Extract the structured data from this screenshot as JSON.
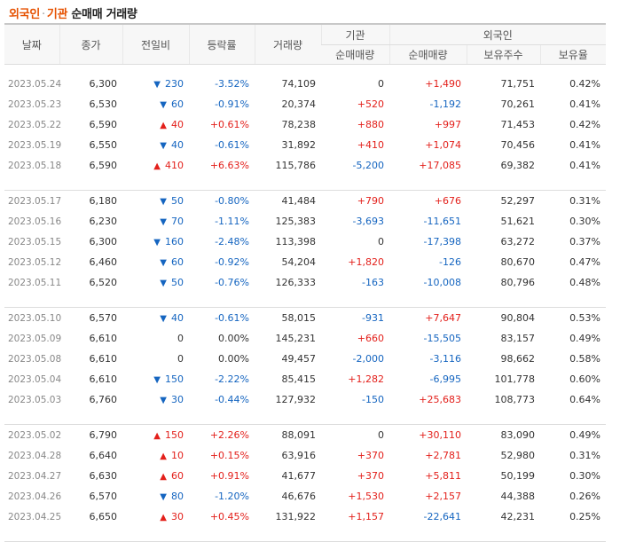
{
  "title": {
    "part1": "외국인",
    "sep": "·",
    "part2": "기관",
    "part3": "순매매 거래량"
  },
  "headers": {
    "date": "날짜",
    "close": "종가",
    "change": "전일비",
    "rate": "등락률",
    "volume": "거래량",
    "institution": "기관",
    "foreign": "외국인",
    "inst_net": "순매매량",
    "foreign_net": "순매매량",
    "foreign_hold": "보유주수",
    "foreign_ratio": "보유율"
  },
  "colors": {
    "up": "#e3201b",
    "down": "#1565c0"
  },
  "groups": [
    [
      {
        "date": "2023.05.24",
        "close": "6,300",
        "dir": "down",
        "change": "230",
        "rate": "-3.52%",
        "volume": "74,109",
        "inst": "0",
        "foreign": "+1,490",
        "hold": "71,751",
        "ratio": "0.42%"
      },
      {
        "date": "2023.05.23",
        "close": "6,530",
        "dir": "down",
        "change": "60",
        "rate": "-0.91%",
        "volume": "20,374",
        "inst": "+520",
        "foreign": "-1,192",
        "hold": "70,261",
        "ratio": "0.41%"
      },
      {
        "date": "2023.05.22",
        "close": "6,590",
        "dir": "up",
        "change": "40",
        "rate": "+0.61%",
        "volume": "78,238",
        "inst": "+880",
        "foreign": "+997",
        "hold": "71,453",
        "ratio": "0.42%"
      },
      {
        "date": "2023.05.19",
        "close": "6,550",
        "dir": "down",
        "change": "40",
        "rate": "-0.61%",
        "volume": "31,892",
        "inst": "+410",
        "foreign": "+1,074",
        "hold": "70,456",
        "ratio": "0.41%"
      },
      {
        "date": "2023.05.18",
        "close": "6,590",
        "dir": "up",
        "change": "410",
        "rate": "+6.63%",
        "volume": "115,786",
        "inst": "-5,200",
        "foreign": "+17,085",
        "hold": "69,382",
        "ratio": "0.41%"
      }
    ],
    [
      {
        "date": "2023.05.17",
        "close": "6,180",
        "dir": "down",
        "change": "50",
        "rate": "-0.80%",
        "volume": "41,484",
        "inst": "+790",
        "foreign": "+676",
        "hold": "52,297",
        "ratio": "0.31%"
      },
      {
        "date": "2023.05.16",
        "close": "6,230",
        "dir": "down",
        "change": "70",
        "rate": "-1.11%",
        "volume": "125,383",
        "inst": "-3,693",
        "foreign": "-11,651",
        "hold": "51,621",
        "ratio": "0.30%"
      },
      {
        "date": "2023.05.15",
        "close": "6,300",
        "dir": "down",
        "change": "160",
        "rate": "-2.48%",
        "volume": "113,398",
        "inst": "0",
        "foreign": "-17,398",
        "hold": "63,272",
        "ratio": "0.37%"
      },
      {
        "date": "2023.05.12",
        "close": "6,460",
        "dir": "down",
        "change": "60",
        "rate": "-0.92%",
        "volume": "54,204",
        "inst": "+1,820",
        "foreign": "-126",
        "hold": "80,670",
        "ratio": "0.47%"
      },
      {
        "date": "2023.05.11",
        "close": "6,520",
        "dir": "down",
        "change": "50",
        "rate": "-0.76%",
        "volume": "126,333",
        "inst": "-163",
        "foreign": "-10,008",
        "hold": "80,796",
        "ratio": "0.48%"
      }
    ],
    [
      {
        "date": "2023.05.10",
        "close": "6,570",
        "dir": "down",
        "change": "40",
        "rate": "-0.61%",
        "volume": "58,015",
        "inst": "-931",
        "foreign": "+7,647",
        "hold": "90,804",
        "ratio": "0.53%"
      },
      {
        "date": "2023.05.09",
        "close": "6,610",
        "dir": "flat",
        "change": "0",
        "rate": "0.00%",
        "volume": "145,231",
        "inst": "+660",
        "foreign": "-15,505",
        "hold": "83,157",
        "ratio": "0.49%"
      },
      {
        "date": "2023.05.08",
        "close": "6,610",
        "dir": "flat",
        "change": "0",
        "rate": "0.00%",
        "volume": "49,457",
        "inst": "-2,000",
        "foreign": "-3,116",
        "hold": "98,662",
        "ratio": "0.58%"
      },
      {
        "date": "2023.05.04",
        "close": "6,610",
        "dir": "down",
        "change": "150",
        "rate": "-2.22%",
        "volume": "85,415",
        "inst": "+1,282",
        "foreign": "-6,995",
        "hold": "101,778",
        "ratio": "0.60%"
      },
      {
        "date": "2023.05.03",
        "close": "6,760",
        "dir": "down",
        "change": "30",
        "rate": "-0.44%",
        "volume": "127,932",
        "inst": "-150",
        "foreign": "+25,683",
        "hold": "108,773",
        "ratio": "0.64%"
      }
    ],
    [
      {
        "date": "2023.05.02",
        "close": "6,790",
        "dir": "up",
        "change": "150",
        "rate": "+2.26%",
        "volume": "88,091",
        "inst": "0",
        "foreign": "+30,110",
        "hold": "83,090",
        "ratio": "0.49%"
      },
      {
        "date": "2023.04.28",
        "close": "6,640",
        "dir": "up",
        "change": "10",
        "rate": "+0.15%",
        "volume": "63,916",
        "inst": "+370",
        "foreign": "+2,781",
        "hold": "52,980",
        "ratio": "0.31%"
      },
      {
        "date": "2023.04.27",
        "close": "6,630",
        "dir": "up",
        "change": "60",
        "rate": "+0.91%",
        "volume": "41,677",
        "inst": "+370",
        "foreign": "+5,811",
        "hold": "50,199",
        "ratio": "0.30%"
      },
      {
        "date": "2023.04.26",
        "close": "6,570",
        "dir": "down",
        "change": "80",
        "rate": "-1.20%",
        "volume": "46,676",
        "inst": "+1,530",
        "foreign": "+2,157",
        "hold": "44,388",
        "ratio": "0.26%"
      },
      {
        "date": "2023.04.25",
        "close": "6,650",
        "dir": "up",
        "change": "30",
        "rate": "+0.45%",
        "volume": "131,922",
        "inst": "+1,157",
        "foreign": "-22,641",
        "hold": "42,231",
        "ratio": "0.25%"
      }
    ]
  ]
}
